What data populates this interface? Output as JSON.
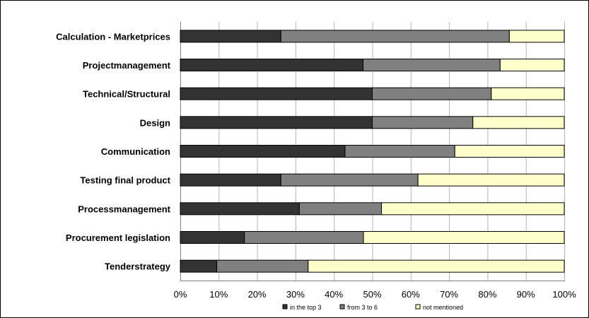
{
  "chart_data": {
    "type": "bar",
    "orientation": "horizontal",
    "stacked": true,
    "normalized": "percent",
    "categories": [
      "Calculation - Marketprices",
      "Projectmanagement",
      "Technical/Structural",
      "Design",
      "Communication",
      "Testing final product",
      "Processmanagement",
      "Procurement legislation",
      "Tenderstrategy"
    ],
    "series": [
      {
        "name": "in the top 3",
        "color": "#333333",
        "values": [
          26.2,
          47.6,
          50.0,
          50.0,
          42.9,
          26.2,
          31.0,
          16.7,
          9.5
        ]
      },
      {
        "name": "from 3 to 6",
        "color": "#808080",
        "values": [
          59.5,
          35.7,
          31.0,
          26.2,
          28.6,
          35.7,
          21.4,
          31.0,
          23.8
        ]
      },
      {
        "name": "not  mentioned",
        "color": "#ffffcc",
        "values": [
          14.3,
          16.7,
          19.0,
          23.8,
          28.5,
          38.1,
          47.6,
          52.3,
          66.7
        ]
      }
    ],
    "xlim": [
      0,
      100
    ],
    "x_ticks": [
      "0%",
      "10%",
      "20%",
      "30%",
      "40%",
      "50%",
      "60%",
      "70%",
      "80%",
      "90%",
      "100%"
    ],
    "grid": true,
    "legend_position": "bottom"
  }
}
